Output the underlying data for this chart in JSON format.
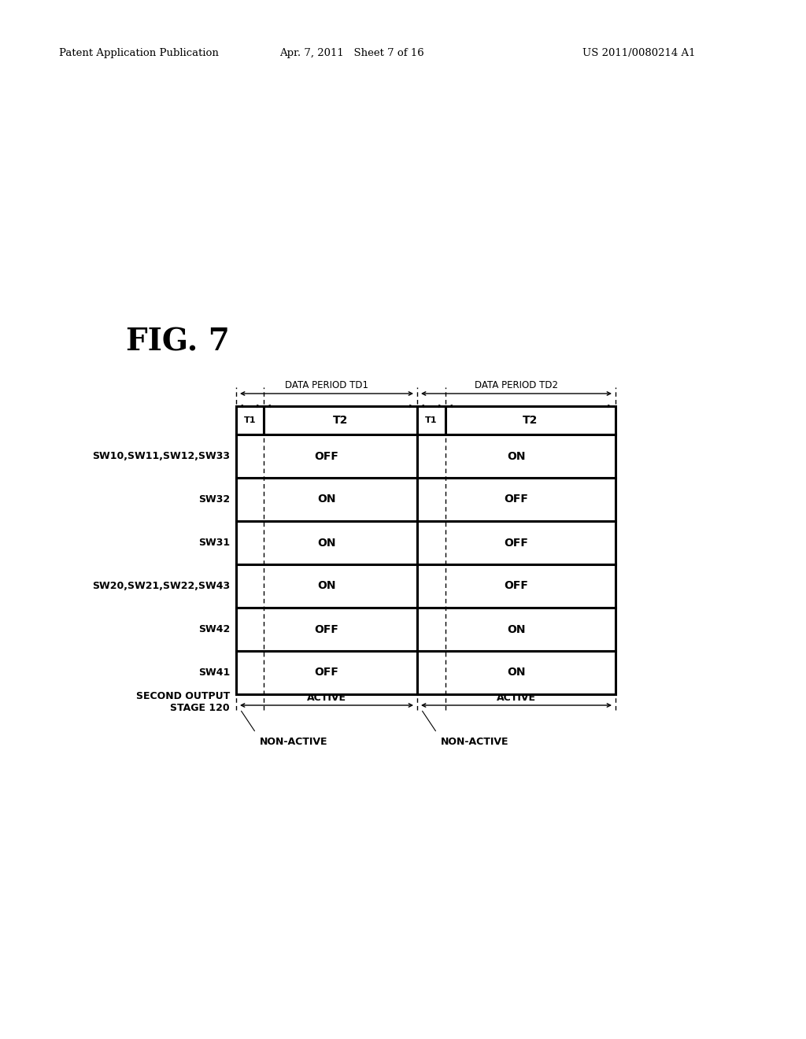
{
  "header_left": "Patent Application Publication",
  "header_mid": "Apr. 7, 2011   Sheet 7 of 16",
  "header_right": "US 2011/0080214 A1",
  "fig_label": "FIG. 7",
  "bg_color": "#ffffff",
  "rows": [
    {
      "label": "SW10,SW11,SW12,SW33",
      "td1_state": "OFF",
      "td2_state": "ON"
    },
    {
      "label": "SW32",
      "td1_state": "ON",
      "td2_state": "OFF"
    },
    {
      "label": "SW31",
      "td1_state": "ON",
      "td2_state": "OFF"
    },
    {
      "label": "SW20,SW21,SW22,SW43",
      "td1_state": "ON",
      "td2_state": "OFF"
    },
    {
      "label": "SW42",
      "td1_state": "OFF",
      "td2_state": "ON"
    },
    {
      "label": "SW41",
      "td1_state": "OFF",
      "td2_state": "ON"
    }
  ],
  "bottom_label_line1": "SECOND OUTPUT",
  "bottom_label_line2": "STAGE 120"
}
